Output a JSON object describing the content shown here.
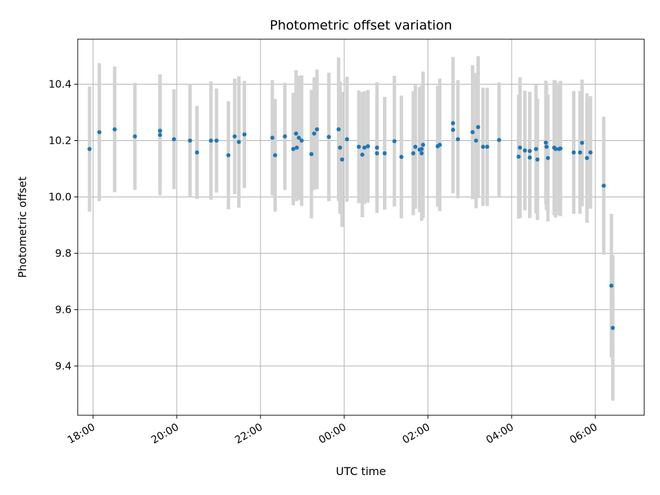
{
  "chart_data": {
    "type": "scatter",
    "title": "Photometric offset variation",
    "xlabel": "UTC time",
    "ylabel": "Photometric offset",
    "x_start_date": "2023-01-01",
    "x_tick_values": [
      "2023-01-01T18:00",
      "2023-01-01T20:00",
      "2023-01-01T22:00",
      "2023-01-02T00:00",
      "2023-01-02T02:00",
      "2023-01-02T04:00",
      "2023-01-02T06:00"
    ],
    "x_tick_labels": [
      "18:00",
      "20:00",
      "22:00",
      "00:00",
      "02:00",
      "04:00",
      "06:00"
    ],
    "xlim": [
      "2023-01-01T17:38",
      "2023-01-02T07:10"
    ],
    "y_ticks": [
      9.4,
      9.6,
      9.8,
      10.0,
      10.2,
      10.4
    ],
    "y_tick_labels": [
      "9.4",
      "9.6",
      "9.8",
      "10.0",
      "10.2",
      "10.4"
    ],
    "ylim": [
      9.225,
      10.56
    ],
    "grid": true,
    "point_color": "#1f77b4",
    "errorbar_color": "#d3d3d3",
    "series": [
      {
        "x": [
          "2023-01-01T17:55",
          "2023-01-01T18:09",
          "2023-01-01T18:31",
          "2023-01-01T19:00",
          "2023-01-01T19:36",
          "2023-01-01T19:36",
          "2023-01-01T19:56",
          "2023-01-01T20:19",
          "2023-01-01T20:29",
          "2023-01-01T20:49",
          "2023-01-01T20:57",
          "2023-01-01T21:14",
          "2023-01-01T21:23",
          "2023-01-01T21:29",
          "2023-01-01T21:37",
          "2023-01-01T22:17",
          "2023-01-01T22:21",
          "2023-01-01T22:35",
          "2023-01-01T22:47",
          "2023-01-01T22:51",
          "2023-01-01T22:52",
          "2023-01-01T22:55",
          "2023-01-01T22:59",
          "2023-01-01T23:13",
          "2023-01-01T23:17",
          "2023-01-01T23:21",
          "2023-01-01T23:38",
          "2023-01-01T23:52",
          "2023-01-01T23:54",
          "2023-01-01T23:57",
          "2023-01-02T00:04",
          "2023-01-02T00:21",
          "2023-01-02T00:26",
          "2023-01-02T00:29",
          "2023-01-02T00:34",
          "2023-01-02T00:47",
          "2023-01-02T00:47",
          "2023-01-02T00:58",
          "2023-01-02T01:12",
          "2023-01-02T01:22",
          "2023-01-02T01:39",
          "2023-01-02T01:42",
          "2023-01-02T01:48",
          "2023-01-02T01:51",
          "2023-01-02T01:51",
          "2023-01-02T01:53",
          "2023-01-02T02:14",
          "2023-01-02T02:17",
          "2023-01-02T02:36",
          "2023-01-02T02:36",
          "2023-01-02T02:43",
          "2023-01-02T03:04",
          "2023-01-02T03:09",
          "2023-01-02T03:12",
          "2023-01-02T03:19",
          "2023-01-02T03:25",
          "2023-01-02T03:42",
          "2023-01-02T04:10",
          "2023-01-02T04:12",
          "2023-01-02T04:19",
          "2023-01-02T04:26",
          "2023-01-02T04:26",
          "2023-01-02T04:35",
          "2023-01-02T04:37",
          "2023-01-02T04:49",
          "2023-01-02T04:50",
          "2023-01-02T04:52",
          "2023-01-02T05:01",
          "2023-01-02T05:03",
          "2023-01-02T05:08",
          "2023-01-02T05:10",
          "2023-01-02T05:29",
          "2023-01-02T05:38",
          "2023-01-02T05:41",
          "2023-01-02T05:48",
          "2023-01-02T05:53",
          "2023-01-02T06:12",
          "2023-01-02T06:23",
          "2023-01-02T06:25"
        ],
        "y": [
          10.17,
          10.23,
          10.24,
          10.215,
          10.235,
          10.22,
          10.205,
          10.2,
          10.158,
          10.2,
          10.2,
          10.148,
          10.215,
          10.195,
          10.222,
          10.21,
          10.148,
          10.215,
          10.17,
          10.225,
          10.175,
          10.21,
          10.2,
          10.152,
          10.225,
          10.24,
          10.213,
          10.24,
          10.175,
          10.133,
          10.205,
          10.178,
          10.15,
          10.175,
          10.18,
          10.175,
          10.155,
          10.155,
          10.198,
          10.142,
          10.155,
          10.178,
          10.168,
          10.17,
          10.155,
          10.185,
          10.18,
          10.185,
          10.262,
          10.238,
          10.205,
          10.23,
          10.2,
          10.248,
          10.178,
          10.178,
          10.202,
          10.143,
          10.175,
          10.165,
          10.14,
          10.163,
          10.17,
          10.133,
          10.193,
          10.178,
          10.138,
          10.175,
          10.17,
          10.17,
          10.172,
          10.158,
          10.158,
          10.192,
          10.138,
          10.158,
          10.04,
          9.685,
          9.535
        ],
        "yerr": [
          0.222,
          0.245,
          0.223,
          0.19,
          0.2,
          0.215,
          0.177,
          0.2,
          0.165,
          0.21,
          0.185,
          0.192,
          0.205,
          0.233,
          0.19,
          0.205,
          0.2,
          0.19,
          0.2,
          0.225,
          0.19,
          0.22,
          0.232,
          0.228,
          0.2,
          0.212,
          0.228,
          0.255,
          0.235,
          0.24,
          0.222,
          0.2,
          0.222,
          0.2,
          0.2,
          0.232,
          0.2,
          0.2,
          0.232,
          0.218,
          0.22,
          0.22,
          0.222,
          0.225,
          0.24,
          0.26,
          0.215,
          0.235,
          0.235,
          0.225,
          0.21,
          0.238,
          0.24,
          0.252,
          0.21,
          0.21,
          0.205,
          0.22,
          0.25,
          0.212,
          0.215,
          0.21,
          0.228,
          0.215,
          0.22,
          0.225,
          0.225,
          0.24,
          0.243,
          0.235,
          0.24,
          0.218,
          0.218,
          0.225,
          0.23,
          0.2,
          0.245,
          0.255,
          0.258
        ]
      }
    ]
  }
}
